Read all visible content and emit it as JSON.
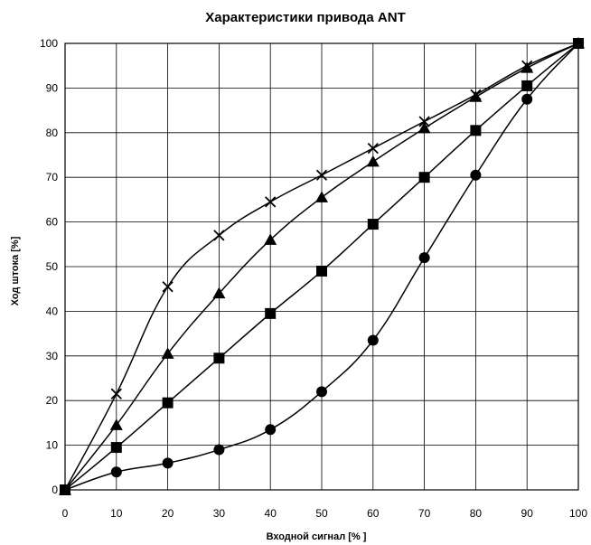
{
  "chart_data": {
    "type": "line",
    "title": "Характеристики привода ANT",
    "xlabel": "Входной сигнал [% ]",
    "ylabel": "Ход штока [%]",
    "xlim": [
      0,
      100
    ],
    "ylim": [
      0,
      100
    ],
    "x_ticks": [
      0,
      10,
      20,
      30,
      40,
      50,
      60,
      70,
      80,
      90,
      100
    ],
    "y_ticks": [
      0,
      10,
      20,
      30,
      40,
      50,
      60,
      70,
      80,
      90,
      100
    ],
    "grid": true,
    "legend": "none",
    "series": [
      {
        "marker": "cross",
        "color": "#000000",
        "x": [
          0,
          10,
          20,
          30,
          40,
          50,
          60,
          70,
          80,
          90,
          100
        ],
        "y": [
          0,
          21.5,
          45.5,
          57,
          64.5,
          70.5,
          76.5,
          82.5,
          88.5,
          95,
          100
        ]
      },
      {
        "marker": "triangle",
        "color": "#000000",
        "x": [
          0,
          10,
          20,
          30,
          40,
          50,
          60,
          70,
          80,
          90,
          100
        ],
        "y": [
          0,
          14.5,
          30.5,
          44,
          56,
          65.5,
          73.5,
          81,
          88,
          94.5,
          100
        ]
      },
      {
        "marker": "square",
        "color": "#000000",
        "x": [
          0,
          10,
          20,
          30,
          40,
          50,
          60,
          70,
          80,
          90,
          100
        ],
        "y": [
          0,
          9.5,
          19.5,
          29.5,
          39.5,
          49,
          59.5,
          70,
          80.5,
          90.5,
          100
        ]
      },
      {
        "marker": "circle",
        "color": "#000000",
        "x": [
          0,
          10,
          20,
          30,
          40,
          50,
          60,
          70,
          80,
          90,
          100
        ],
        "y": [
          0,
          4,
          6,
          9,
          13.5,
          22,
          33.5,
          52,
          70.5,
          87.5,
          100
        ]
      }
    ]
  }
}
